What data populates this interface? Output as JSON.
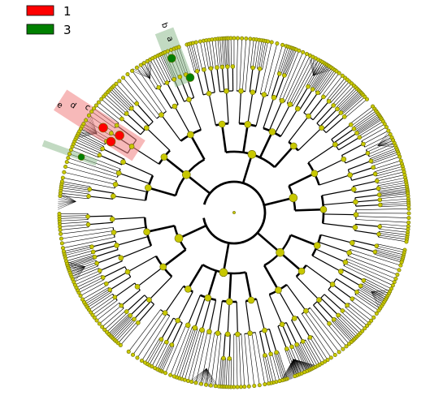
{
  "legend": [
    {
      "label": "1",
      "color": "#ff0000"
    },
    {
      "label": "3",
      "color": "#008000"
    }
  ],
  "colors": {
    "node_default": "#c8c800",
    "node_stroke": "#6b6b00",
    "branch": "#000000",
    "highlight_group1": "#f08080",
    "highlight_group3": "#8fbc8f"
  },
  "clade_labels": [
    {
      "letter": "a",
      "group": "3"
    },
    {
      "letter": "b",
      "group": "3"
    },
    {
      "letter": "c",
      "group": "1"
    },
    {
      "letter": "d",
      "group": "1"
    },
    {
      "letter": "e",
      "group": "1"
    }
  ]
}
